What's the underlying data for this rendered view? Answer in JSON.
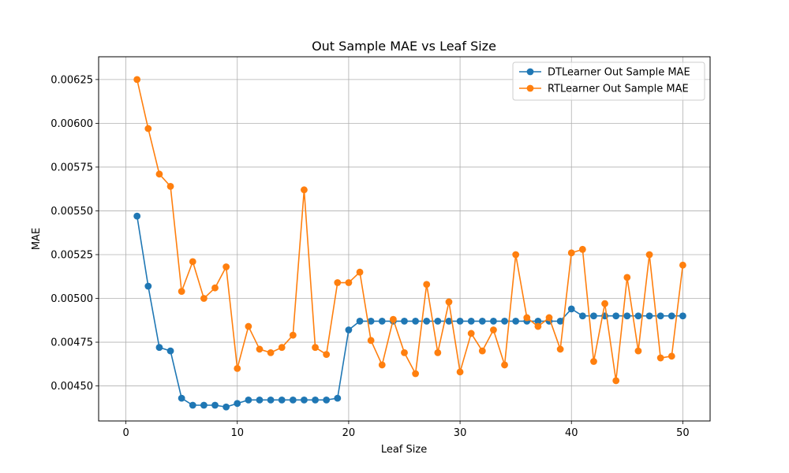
{
  "chart_data": {
    "type": "line",
    "title": "Out Sample MAE vs Leaf Size",
    "xlabel": "Leaf Size",
    "ylabel": "MAE",
    "xlim": [
      -2.45,
      52.45
    ],
    "ylim": [
      0.0043,
      0.00638
    ],
    "xticks": [
      0,
      10,
      20,
      30,
      40,
      50
    ],
    "xtick_labels": [
      "0",
      "10",
      "20",
      "30",
      "40",
      "50"
    ],
    "yticks": [
      0.0045,
      0.00475,
      0.005,
      0.00525,
      0.0055,
      0.00575,
      0.006,
      0.00625
    ],
    "ytick_labels": [
      "0.00450",
      "0.00475",
      "0.00500",
      "0.00525",
      "0.00550",
      "0.00575",
      "0.00600",
      "0.00625"
    ],
    "grid": true,
    "legend_position": "top-right",
    "x": [
      1,
      2,
      3,
      4,
      5,
      6,
      7,
      8,
      9,
      10,
      11,
      12,
      13,
      14,
      15,
      16,
      17,
      18,
      19,
      20,
      21,
      22,
      23,
      24,
      25,
      26,
      27,
      28,
      29,
      30,
      31,
      32,
      33,
      34,
      35,
      36,
      37,
      38,
      39,
      40,
      41,
      42,
      43,
      44,
      45,
      46,
      47,
      48,
      49,
      50
    ],
    "series": [
      {
        "name": "DTLearner Out Sample MAE",
        "color": "#1f77b4",
        "values": [
          0.00547,
          0.00507,
          0.00472,
          0.0047,
          0.00443,
          0.00439,
          0.00439,
          0.00439,
          0.00438,
          0.0044,
          0.00442,
          0.00442,
          0.00442,
          0.00442,
          0.00442,
          0.00442,
          0.00442,
          0.00442,
          0.00443,
          0.00482,
          0.00487,
          0.00487,
          0.00487,
          0.00487,
          0.00487,
          0.00487,
          0.00487,
          0.00487,
          0.00487,
          0.00487,
          0.00487,
          0.00487,
          0.00487,
          0.00487,
          0.00487,
          0.00487,
          0.00487,
          0.00487,
          0.00487,
          0.00494,
          0.0049,
          0.0049,
          0.0049,
          0.0049,
          0.0049,
          0.0049,
          0.0049,
          0.0049,
          0.0049,
          0.0049
        ]
      },
      {
        "name": "RTLearner Out Sample MAE",
        "color": "#ff7f0e",
        "values": [
          0.00625,
          0.00597,
          0.00571,
          0.00564,
          0.00504,
          0.00521,
          0.005,
          0.00506,
          0.00518,
          0.0046,
          0.00484,
          0.00471,
          0.00469,
          0.00472,
          0.00479,
          0.00562,
          0.00472,
          0.00468,
          0.00509,
          0.00509,
          0.00515,
          0.00476,
          0.00462,
          0.00488,
          0.00469,
          0.00457,
          0.00508,
          0.00469,
          0.00498,
          0.00458,
          0.0048,
          0.0047,
          0.00482,
          0.00462,
          0.00525,
          0.00489,
          0.00484,
          0.00489,
          0.00471,
          0.00526,
          0.00528,
          0.00464,
          0.00497,
          0.00453,
          0.00512,
          0.0047,
          0.00525,
          0.00466,
          0.00467,
          0.00519
        ]
      }
    ]
  }
}
